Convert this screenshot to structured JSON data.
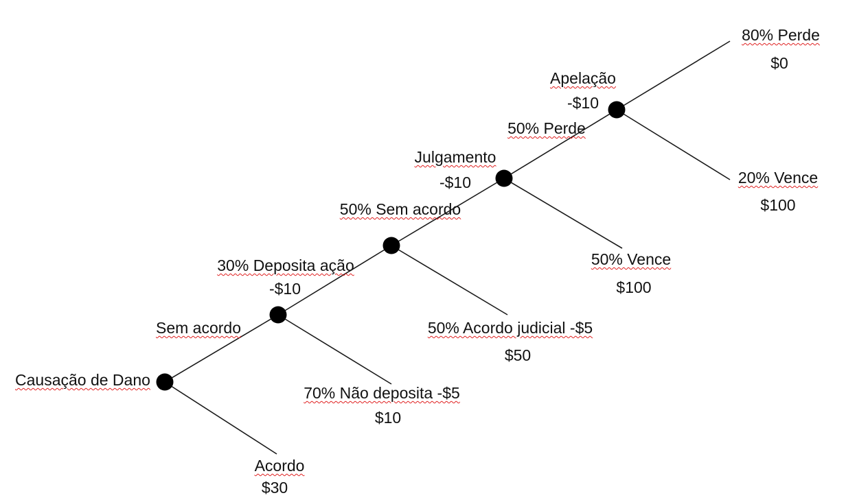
{
  "tree": {
    "root": {
      "label": "Causação de Dano"
    },
    "settlement": {
      "label": "Acordo",
      "value": "$30"
    },
    "no_settlement": {
      "label": "Sem acordo"
    },
    "files_suit": {
      "label": "30% Deposita ação",
      "cost": "-$10"
    },
    "does_not_file": {
      "label": "70% Não deposita -$5",
      "value": "$10"
    },
    "no_agreement": {
      "label": "50% Sem acordo"
    },
    "judicial_settlement": {
      "label": "50% Acordo judicial -$5",
      "value": "$50"
    },
    "trial": {
      "label": "Julgamento",
      "cost": "-$10"
    },
    "trial_lose": {
      "label": "50% Perde"
    },
    "trial_win": {
      "label": "50% Vence",
      "value": "$100"
    },
    "appeal": {
      "label": "Apelação",
      "cost": "-$10"
    },
    "appeal_lose": {
      "label": "80% Perde",
      "value": "$0"
    },
    "appeal_win": {
      "label": "20% Vence",
      "value": "$100"
    }
  },
  "colors": {
    "line": "#1a1a1a",
    "node": "#000000",
    "spellcheck": "#e02020"
  }
}
